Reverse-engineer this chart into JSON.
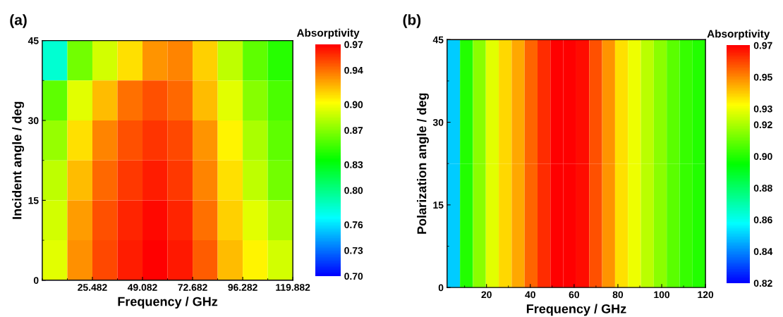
{
  "chart_data": [
    {
      "type": "heatmap",
      "title": "(a)",
      "xlabel": "Frequency / GHz",
      "ylabel": "Incident angle / deg",
      "clabel": "Absorptivity",
      "x": [
        7.782,
        19.582,
        31.382,
        43.182,
        54.982,
        66.782,
        78.582,
        90.382,
        102.182,
        113.982
      ],
      "y": [
        41.25,
        33.75,
        26.25,
        18.75,
        11.25,
        3.75
      ],
      "cells": [
        [
          0.78,
          0.865,
          0.89,
          0.91,
          0.93,
          0.935,
          0.915,
          0.885,
          0.86,
          0.845
        ],
        [
          0.86,
          0.895,
          0.92,
          0.94,
          0.948,
          0.942,
          0.92,
          0.895,
          0.87,
          0.855
        ],
        [
          0.875,
          0.91,
          0.935,
          0.948,
          0.956,
          0.95,
          0.93,
          0.905,
          0.88,
          0.86
        ],
        [
          0.885,
          0.92,
          0.942,
          0.955,
          0.962,
          0.955,
          0.935,
          0.91,
          0.885,
          0.865
        ],
        [
          0.89,
          0.928,
          0.948,
          0.96,
          0.967,
          0.96,
          0.94,
          0.915,
          0.895,
          0.88
        ],
        [
          0.895,
          0.932,
          0.95,
          0.962,
          0.97,
          0.963,
          0.945,
          0.92,
          0.905,
          0.89
        ]
      ],
      "xlim": [
        1.882,
        119.882
      ],
      "xticks": [
        25.482,
        49.082,
        72.682,
        96.282,
        119.882
      ],
      "ylim": [
        0,
        45
      ],
      "yticks": [
        0,
        15,
        30,
        45
      ],
      "clim": [
        0.7,
        0.97
      ],
      "cticks": [
        {
          "value": 0.7,
          "label": "0.70"
        },
        {
          "value": 0.73,
          "label": "0.73"
        },
        {
          "value": 0.76,
          "label": "0.76"
        },
        {
          "value": 0.8,
          "label": "0.80"
        },
        {
          "value": 0.83,
          "label": "0.83"
        },
        {
          "value": 0.87,
          "label": "0.87"
        },
        {
          "value": 0.9,
          "label": "0.90"
        },
        {
          "value": 0.94,
          "label": "0.94"
        },
        {
          "value": 0.97,
          "label": "0.97"
        }
      ]
    },
    {
      "type": "heatmap",
      "title": "(b)",
      "xlabel": "Frequency / GHz",
      "ylabel": "Polarization angle / deg",
      "clabel": "Absorptivity",
      "x": [
        4.95,
        10.85,
        16.75,
        22.65,
        28.55,
        34.45,
        40.35,
        46.25,
        52.15,
        58.05,
        63.95,
        69.85,
        75.75,
        81.65,
        87.55,
        93.45,
        99.35,
        105.25,
        111.15,
        117.05
      ],
      "y": [
        33.75,
        11.25
      ],
      "cells": [
        [
          0.85,
          0.9,
          0.915,
          0.928,
          0.938,
          0.945,
          0.955,
          0.963,
          0.97,
          0.97,
          0.968,
          0.958,
          0.948,
          0.937,
          0.93,
          0.922,
          0.915,
          0.908,
          0.903,
          0.9
        ],
        [
          0.85,
          0.9,
          0.915,
          0.928,
          0.938,
          0.945,
          0.955,
          0.963,
          0.97,
          0.97,
          0.968,
          0.958,
          0.948,
          0.937,
          0.93,
          0.922,
          0.915,
          0.908,
          0.903,
          0.9
        ]
      ],
      "xlim": [
        2,
        120
      ],
      "xticks": [
        20,
        40,
        60,
        80,
        100,
        120
      ],
      "ylim": [
        0,
        45
      ],
      "yticks": [
        0,
        15,
        30,
        45
      ],
      "clim": [
        0.82,
        0.97
      ],
      "cticks": [
        {
          "value": 0.82,
          "label": "0.82"
        },
        {
          "value": 0.84,
          "label": "0.84"
        },
        {
          "value": 0.86,
          "label": "0.86"
        },
        {
          "value": 0.88,
          "label": "0.88"
        },
        {
          "value": 0.9,
          "label": "0.90"
        },
        {
          "value": 0.92,
          "label": "0.92"
        },
        {
          "value": 0.93,
          "label": "0.93"
        },
        {
          "value": 0.95,
          "label": "0.95"
        },
        {
          "value": 0.97,
          "label": "0.97"
        }
      ]
    }
  ]
}
